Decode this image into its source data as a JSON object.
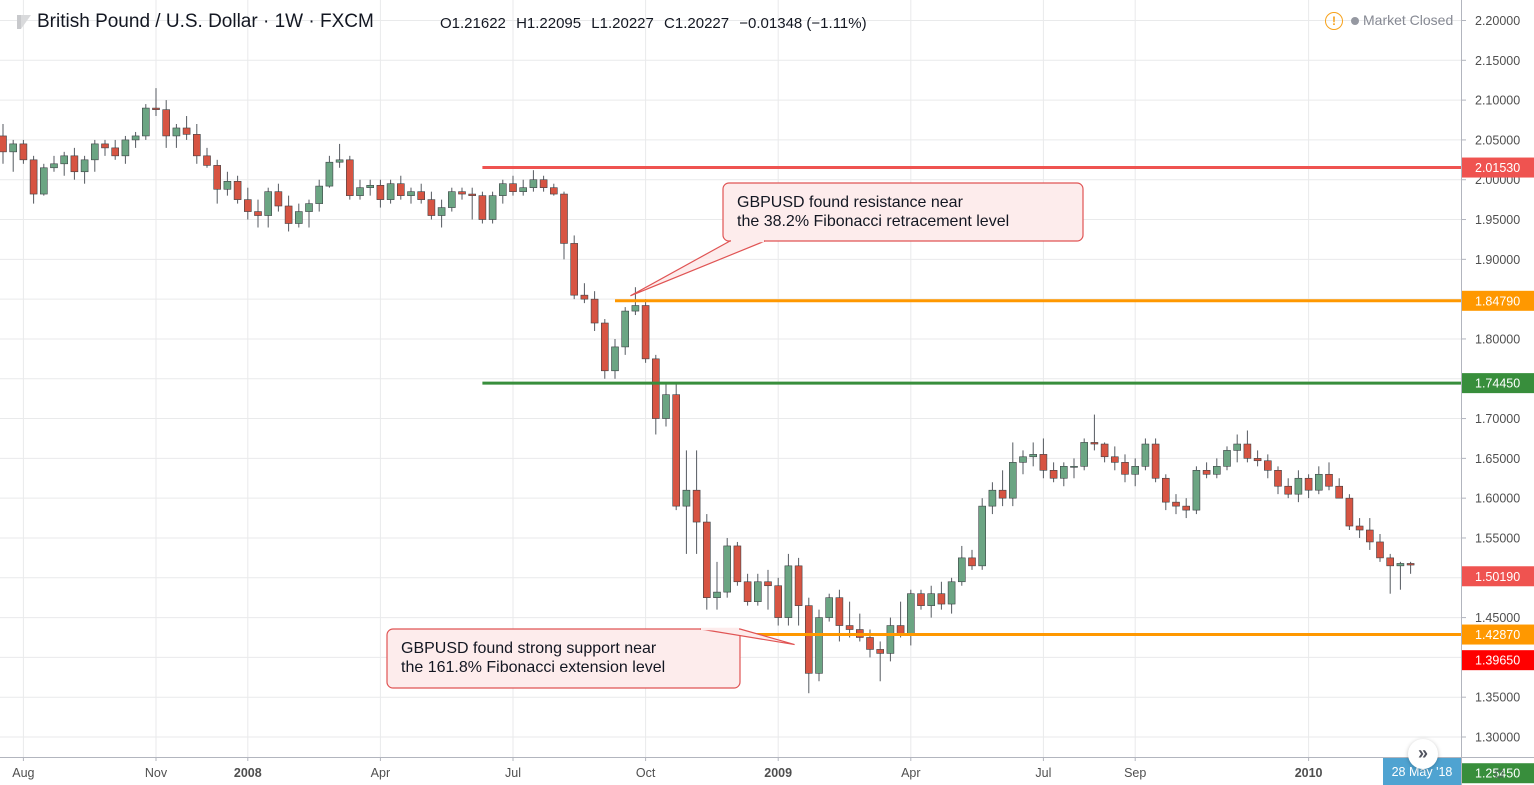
{
  "header": {
    "symbol_title": "British Pound / U.S. Dollar · 1W · FXCM",
    "open": "O1.21622",
    "high": "H1.22095",
    "low": "L1.20227",
    "close": "C1.20227",
    "change": "−0.01348 (−1.11%)",
    "market_status": "Market Closed",
    "warning_icon": "exclamation-circle-icon"
  },
  "controls": {
    "scroll_icon": "double-chevron-right-icon",
    "settings_icon": "gear-icon",
    "scroll_glyph": "»",
    "settings_glyph": "☼"
  },
  "chart_data": {
    "type": "candlestick",
    "title": "British Pound / U.S. Dollar · 1W · FXCM",
    "ylim": [
      1.22,
      2.22
    ],
    "y_ticks": [
      "2.20000",
      "2.15000",
      "2.10000",
      "2.05000",
      "2.00000",
      "1.95000",
      "1.90000",
      "1.85000",
      "1.80000",
      "1.75000",
      "1.70000",
      "1.65000",
      "1.60000",
      "1.55000",
      "1.50000",
      "1.45000",
      "1.40000",
      "1.35000",
      "1.30000"
    ],
    "x_ticks": [
      {
        "label": "Aug",
        "bar": 2,
        "bold": false
      },
      {
        "label": "Nov",
        "bar": 15,
        "bold": false
      },
      {
        "label": "2008",
        "bar": 24,
        "bold": true
      },
      {
        "label": "Apr",
        "bar": 37,
        "bold": false
      },
      {
        "label": "Jul",
        "bar": 50,
        "bold": false
      },
      {
        "label": "Oct",
        "bar": 63,
        "bold": false
      },
      {
        "label": "2009",
        "bar": 76,
        "bold": true
      },
      {
        "label": "Apr",
        "bar": 89,
        "bold": false
      },
      {
        "label": "Jul",
        "bar": 102,
        "bold": false
      },
      {
        "label": "Sep",
        "bar": 111,
        "bold": false
      },
      {
        "label": "2010",
        "bar": 128,
        "bold": true
      }
    ],
    "crosshair_date": "28 May '18",
    "candles": [
      {
        "o": 2.055,
        "h": 2.07,
        "l": 2.02,
        "c": 2.035
      },
      {
        "o": 2.035,
        "h": 2.05,
        "l": 2.01,
        "c": 2.045
      },
      {
        "o": 2.045,
        "h": 2.05,
        "l": 2.02,
        "c": 2.025
      },
      {
        "o": 2.025,
        "h": 2.03,
        "l": 1.97,
        "c": 1.982
      },
      {
        "o": 1.982,
        "h": 2.02,
        "l": 1.98,
        "c": 2.015
      },
      {
        "o": 2.015,
        "h": 2.03,
        "l": 2.01,
        "c": 2.02
      },
      {
        "o": 2.02,
        "h": 2.035,
        "l": 2.005,
        "c": 2.03
      },
      {
        "o": 2.03,
        "h": 2.04,
        "l": 2.0,
        "c": 2.01
      },
      {
        "o": 2.01,
        "h": 2.03,
        "l": 1.995,
        "c": 2.025
      },
      {
        "o": 2.025,
        "h": 2.05,
        "l": 2.01,
        "c": 2.045
      },
      {
        "o": 2.045,
        "h": 2.05,
        "l": 2.03,
        "c": 2.04
      },
      {
        "o": 2.04,
        "h": 2.05,
        "l": 2.025,
        "c": 2.03
      },
      {
        "o": 2.03,
        "h": 2.055,
        "l": 2.02,
        "c": 2.05
      },
      {
        "o": 2.05,
        "h": 2.06,
        "l": 2.04,
        "c": 2.055
      },
      {
        "o": 2.055,
        "h": 2.095,
        "l": 2.05,
        "c": 2.09
      },
      {
        "o": 2.09,
        "h": 2.115,
        "l": 2.08,
        "c": 2.088
      },
      {
        "o": 2.088,
        "h": 2.1,
        "l": 2.04,
        "c": 2.055
      },
      {
        "o": 2.055,
        "h": 2.07,
        "l": 2.04,
        "c": 2.065
      },
      {
        "o": 2.065,
        "h": 2.08,
        "l": 2.05,
        "c": 2.057
      },
      {
        "o": 2.057,
        "h": 2.07,
        "l": 2.02,
        "c": 2.03
      },
      {
        "o": 2.03,
        "h": 2.04,
        "l": 2.015,
        "c": 2.018
      },
      {
        "o": 2.018,
        "h": 2.025,
        "l": 1.97,
        "c": 1.988
      },
      {
        "o": 1.988,
        "h": 2.01,
        "l": 1.98,
        "c": 1.998
      },
      {
        "o": 1.998,
        "h": 2.005,
        "l": 1.97,
        "c": 1.975
      },
      {
        "o": 1.975,
        "h": 1.99,
        "l": 1.95,
        "c": 1.96
      },
      {
        "o": 1.96,
        "h": 1.975,
        "l": 1.94,
        "c": 1.955
      },
      {
        "o": 1.955,
        "h": 1.99,
        "l": 1.94,
        "c": 1.985
      },
      {
        "o": 1.985,
        "h": 1.995,
        "l": 1.96,
        "c": 1.967
      },
      {
        "o": 1.967,
        "h": 1.98,
        "l": 1.935,
        "c": 1.945
      },
      {
        "o": 1.945,
        "h": 1.97,
        "l": 1.94,
        "c": 1.96
      },
      {
        "o": 1.96,
        "h": 1.975,
        "l": 1.94,
        "c": 1.97
      },
      {
        "o": 1.97,
        "h": 2.0,
        "l": 1.96,
        "c": 1.992
      },
      {
        "o": 1.992,
        "h": 2.03,
        "l": 1.99,
        "c": 2.022
      },
      {
        "o": 2.022,
        "h": 2.045,
        "l": 2.015,
        "c": 2.025
      },
      {
        "o": 2.025,
        "h": 2.03,
        "l": 1.975,
        "c": 1.98
      },
      {
        "o": 1.98,
        "h": 2.0,
        "l": 1.975,
        "c": 1.99
      },
      {
        "o": 1.99,
        "h": 2.0,
        "l": 1.98,
        "c": 1.993
      },
      {
        "o": 1.993,
        "h": 2.0,
        "l": 1.965,
        "c": 1.975
      },
      {
        "o": 1.975,
        "h": 2.0,
        "l": 1.97,
        "c": 1.995
      },
      {
        "o": 1.995,
        "h": 2.005,
        "l": 1.975,
        "c": 1.98
      },
      {
        "o": 1.98,
        "h": 1.99,
        "l": 1.97,
        "c": 1.985
      },
      {
        "o": 1.985,
        "h": 1.995,
        "l": 1.97,
        "c": 1.975
      },
      {
        "o": 1.975,
        "h": 1.985,
        "l": 1.95,
        "c": 1.955
      },
      {
        "o": 1.955,
        "h": 1.975,
        "l": 1.94,
        "c": 1.965
      },
      {
        "o": 1.965,
        "h": 1.99,
        "l": 1.96,
        "c": 1.985
      },
      {
        "o": 1.985,
        "h": 1.99,
        "l": 1.975,
        "c": 1.982
      },
      {
        "o": 1.982,
        "h": 1.99,
        "l": 1.95,
        "c": 1.98
      },
      {
        "o": 1.98,
        "h": 1.985,
        "l": 1.945,
        "c": 1.95
      },
      {
        "o": 1.95,
        "h": 1.985,
        "l": 1.945,
        "c": 1.98
      },
      {
        "o": 1.98,
        "h": 2.0,
        "l": 1.97,
        "c": 1.995
      },
      {
        "o": 1.995,
        "h": 2.005,
        "l": 1.98,
        "c": 1.985
      },
      {
        "o": 1.985,
        "h": 2.0,
        "l": 1.98,
        "c": 1.99
      },
      {
        "o": 1.99,
        "h": 2.012,
        "l": 1.985,
        "c": 2.0
      },
      {
        "o": 2.0,
        "h": 2.005,
        "l": 1.985,
        "c": 1.99
      },
      {
        "o": 1.99,
        "h": 1.995,
        "l": 1.98,
        "c": 1.982
      },
      {
        "o": 1.982,
        "h": 1.985,
        "l": 1.9,
        "c": 1.92
      },
      {
        "o": 1.92,
        "h": 1.93,
        "l": 1.85,
        "c": 1.855
      },
      {
        "o": 1.855,
        "h": 1.87,
        "l": 1.845,
        "c": 1.85
      },
      {
        "o": 1.85,
        "h": 1.86,
        "l": 1.81,
        "c": 1.82
      },
      {
        "o": 1.82,
        "h": 1.825,
        "l": 1.75,
        "c": 1.76
      },
      {
        "o": 1.76,
        "h": 1.8,
        "l": 1.75,
        "c": 1.79
      },
      {
        "o": 1.79,
        "h": 1.84,
        "l": 1.78,
        "c": 1.835
      },
      {
        "o": 1.835,
        "h": 1.865,
        "l": 1.83,
        "c": 1.842
      },
      {
        "o": 1.842,
        "h": 1.85,
        "l": 1.77,
        "c": 1.775
      },
      {
        "o": 1.775,
        "h": 1.78,
        "l": 1.68,
        "c": 1.7
      },
      {
        "o": 1.7,
        "h": 1.745,
        "l": 1.69,
        "c": 1.73
      },
      {
        "o": 1.73,
        "h": 1.745,
        "l": 1.585,
        "c": 1.59
      },
      {
        "o": 1.59,
        "h": 1.66,
        "l": 1.53,
        "c": 1.61
      },
      {
        "o": 1.61,
        "h": 1.66,
        "l": 1.53,
        "c": 1.57
      },
      {
        "o": 1.57,
        "h": 1.58,
        "l": 1.46,
        "c": 1.475
      },
      {
        "o": 1.475,
        "h": 1.52,
        "l": 1.46,
        "c": 1.482
      },
      {
        "o": 1.482,
        "h": 1.55,
        "l": 1.475,
        "c": 1.54
      },
      {
        "o": 1.54,
        "h": 1.545,
        "l": 1.49,
        "c": 1.495
      },
      {
        "o": 1.495,
        "h": 1.505,
        "l": 1.465,
        "c": 1.47
      },
      {
        "o": 1.47,
        "h": 1.505,
        "l": 1.465,
        "c": 1.495
      },
      {
        "o": 1.495,
        "h": 1.51,
        "l": 1.46,
        "c": 1.49
      },
      {
        "o": 1.49,
        "h": 1.5,
        "l": 1.44,
        "c": 1.45
      },
      {
        "o": 1.45,
        "h": 1.53,
        "l": 1.44,
        "c": 1.515
      },
      {
        "o": 1.515,
        "h": 1.525,
        "l": 1.44,
        "c": 1.465
      },
      {
        "o": 1.465,
        "h": 1.475,
        "l": 1.355,
        "c": 1.38
      },
      {
        "o": 1.38,
        "h": 1.46,
        "l": 1.37,
        "c": 1.45
      },
      {
        "o": 1.45,
        "h": 1.48,
        "l": 1.445,
        "c": 1.475
      },
      {
        "o": 1.475,
        "h": 1.485,
        "l": 1.42,
        "c": 1.44
      },
      {
        "o": 1.44,
        "h": 1.47,
        "l": 1.425,
        "c": 1.435
      },
      {
        "o": 1.435,
        "h": 1.455,
        "l": 1.42,
        "c": 1.425
      },
      {
        "o": 1.425,
        "h": 1.435,
        "l": 1.4,
        "c": 1.41
      },
      {
        "o": 1.41,
        "h": 1.42,
        "l": 1.37,
        "c": 1.405
      },
      {
        "o": 1.405,
        "h": 1.45,
        "l": 1.395,
        "c": 1.44
      },
      {
        "o": 1.44,
        "h": 1.47,
        "l": 1.425,
        "c": 1.43
      },
      {
        "o": 1.43,
        "h": 1.485,
        "l": 1.415,
        "c": 1.48
      },
      {
        "o": 1.48,
        "h": 1.485,
        "l": 1.46,
        "c": 1.465
      },
      {
        "o": 1.465,
        "h": 1.49,
        "l": 1.45,
        "c": 1.48
      },
      {
        "o": 1.48,
        "h": 1.495,
        "l": 1.46,
        "c": 1.467
      },
      {
        "o": 1.467,
        "h": 1.5,
        "l": 1.455,
        "c": 1.495
      },
      {
        "o": 1.495,
        "h": 1.54,
        "l": 1.49,
        "c": 1.525
      },
      {
        "o": 1.525,
        "h": 1.535,
        "l": 1.51,
        "c": 1.515
      },
      {
        "o": 1.515,
        "h": 1.6,
        "l": 1.51,
        "c": 1.59
      },
      {
        "o": 1.59,
        "h": 1.62,
        "l": 1.58,
        "c": 1.61
      },
      {
        "o": 1.61,
        "h": 1.635,
        "l": 1.59,
        "c": 1.6
      },
      {
        "o": 1.6,
        "h": 1.67,
        "l": 1.59,
        "c": 1.645
      },
      {
        "o": 1.645,
        "h": 1.66,
        "l": 1.63,
        "c": 1.652
      },
      {
        "o": 1.652,
        "h": 1.67,
        "l": 1.64,
        "c": 1.655
      },
      {
        "o": 1.655,
        "h": 1.675,
        "l": 1.625,
        "c": 1.635
      },
      {
        "o": 1.635,
        "h": 1.645,
        "l": 1.62,
        "c": 1.625
      },
      {
        "o": 1.625,
        "h": 1.645,
        "l": 1.615,
        "c": 1.64
      },
      {
        "o": 1.64,
        "h": 1.65,
        "l": 1.625,
        "c": 1.64
      },
      {
        "o": 1.64,
        "h": 1.675,
        "l": 1.635,
        "c": 1.67
      },
      {
        "o": 1.67,
        "h": 1.705,
        "l": 1.66,
        "c": 1.668
      },
      {
        "o": 1.668,
        "h": 1.67,
        "l": 1.645,
        "c": 1.652
      },
      {
        "o": 1.652,
        "h": 1.665,
        "l": 1.635,
        "c": 1.645
      },
      {
        "o": 1.645,
        "h": 1.655,
        "l": 1.62,
        "c": 1.63
      },
      {
        "o": 1.63,
        "h": 1.65,
        "l": 1.615,
        "c": 1.64
      },
      {
        "o": 1.64,
        "h": 1.675,
        "l": 1.635,
        "c": 1.668
      },
      {
        "o": 1.668,
        "h": 1.675,
        "l": 1.62,
        "c": 1.625
      },
      {
        "o": 1.625,
        "h": 1.63,
        "l": 1.585,
        "c": 1.595
      },
      {
        "o": 1.595,
        "h": 1.605,
        "l": 1.58,
        "c": 1.59
      },
      {
        "o": 1.59,
        "h": 1.6,
        "l": 1.575,
        "c": 1.585
      },
      {
        "o": 1.585,
        "h": 1.64,
        "l": 1.58,
        "c": 1.635
      },
      {
        "o": 1.635,
        "h": 1.645,
        "l": 1.625,
        "c": 1.63
      },
      {
        "o": 1.63,
        "h": 1.65,
        "l": 1.625,
        "c": 1.64
      },
      {
        "o": 1.64,
        "h": 1.665,
        "l": 1.635,
        "c": 1.66
      },
      {
        "o": 1.66,
        "h": 1.68,
        "l": 1.645,
        "c": 1.668
      },
      {
        "o": 1.668,
        "h": 1.685,
        "l": 1.645,
        "c": 1.65
      },
      {
        "o": 1.65,
        "h": 1.66,
        "l": 1.64,
        "c": 1.647
      },
      {
        "o": 1.647,
        "h": 1.655,
        "l": 1.625,
        "c": 1.635
      },
      {
        "o": 1.635,
        "h": 1.64,
        "l": 1.605,
        "c": 1.615
      },
      {
        "o": 1.615,
        "h": 1.625,
        "l": 1.6,
        "c": 1.605
      },
      {
        "o": 1.605,
        "h": 1.635,
        "l": 1.595,
        "c": 1.625
      },
      {
        "o": 1.625,
        "h": 1.63,
        "l": 1.6,
        "c": 1.61
      },
      {
        "o": 1.61,
        "h": 1.64,
        "l": 1.605,
        "c": 1.63
      },
      {
        "o": 1.63,
        "h": 1.645,
        "l": 1.61,
        "c": 1.615
      },
      {
        "o": 1.615,
        "h": 1.625,
        "l": 1.6,
        "c": 1.6
      },
      {
        "o": 1.6,
        "h": 1.605,
        "l": 1.56,
        "c": 1.565
      },
      {
        "o": 1.565,
        "h": 1.575,
        "l": 1.55,
        "c": 1.56
      },
      {
        "o": 1.56,
        "h": 1.575,
        "l": 1.535,
        "c": 1.545
      },
      {
        "o": 1.545,
        "h": 1.555,
        "l": 1.52,
        "c": 1.525
      },
      {
        "o": 1.525,
        "h": 1.53,
        "l": 1.48,
        "c": 1.515
      },
      {
        "o": 1.515,
        "h": 1.52,
        "l": 1.485,
        "c": 1.518
      },
      {
        "o": 1.518,
        "h": 1.52,
        "l": 1.505,
        "c": 1.516
      }
    ],
    "horizontal_lines": [
      {
        "price": 2.0153,
        "label": "2.01530",
        "color": "#ef5350",
        "start_bar": 47
      },
      {
        "price": 1.8479,
        "label": "1.84790",
        "color": "#ff9800",
        "start_bar": 60
      },
      {
        "price": 1.7445,
        "label": "1.74450",
        "color": "#388e3c",
        "start_bar": 47
      },
      {
        "price": 1.4287,
        "label": "1.42870",
        "color": "#ff9800",
        "start_bar": 64
      }
    ],
    "price_labels": [
      {
        "price": 1.5019,
        "label": "1.50190",
        "color": "#ef5350"
      },
      {
        "price": 1.3965,
        "label": "1.39650",
        "color": "#ff0000"
      },
      {
        "price": 1.2545,
        "label": "1.25450",
        "color": "#388e3c"
      }
    ],
    "annotations": [
      {
        "text_lines": [
          "GBPUSD found resistance near",
          "the 38.2% Fibonacci retracement level"
        ],
        "anchor_bar": 62,
        "anchor_price": 1.8479
      },
      {
        "text_lines": [
          "GBPUSD found strong support near",
          "the 161.8% Fibonacci extension level"
        ],
        "anchor_bar": 78,
        "anchor_price": 1.4287
      }
    ],
    "colors": {
      "up": "#6ba583",
      "down": "#d75442",
      "grid": "#e9eaeb",
      "axis_text": "#4f4f4f"
    },
    "grid": true
  }
}
